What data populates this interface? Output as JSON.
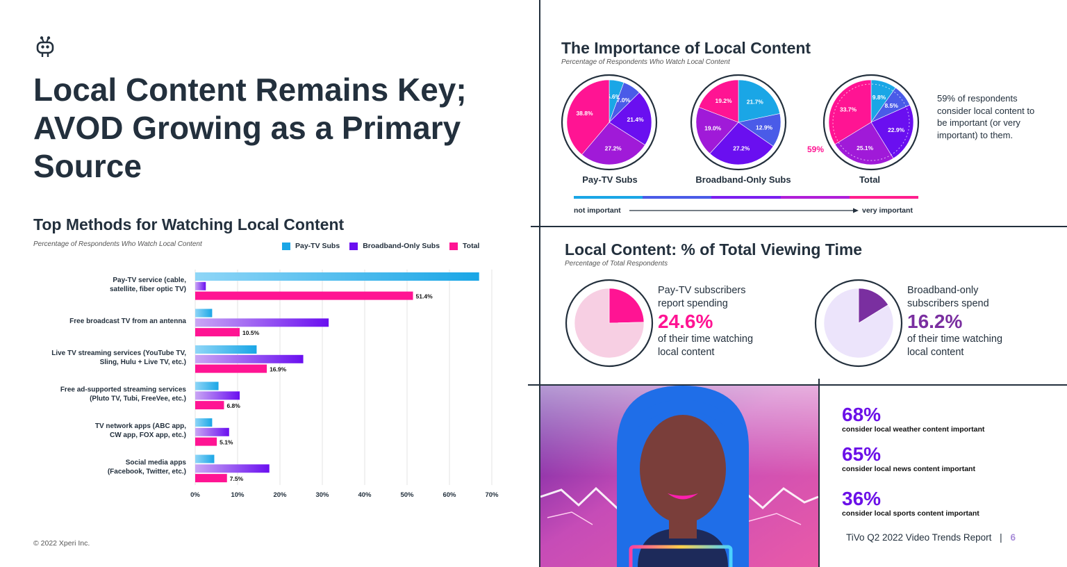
{
  "page": {
    "title": "Local Content Remains Key; AVOD Growing as a Primary Source",
    "copyright": "© 2022 Xperi Inc.",
    "report": "TiVo Q2 2022 Video Trends Report",
    "separator": "|",
    "page_number": "6"
  },
  "bar_section": {
    "title": "Top Methods for Watching Local Content",
    "subtitle": "Percentage of Respondents Who Watch Local Content"
  },
  "pie_section": {
    "title": "The Importance of Local Content",
    "subtitle": "Percentage of Respondents Who Watch Local Content",
    "note": "59% of respondents consider local content to be important (or very important) to them.",
    "total_callout": "59%",
    "scale_low": "not important",
    "scale_high": "very important",
    "scale_colors": [
      "#1aa6e6",
      "#4a5be8",
      "#7a1ff0",
      "#b01ed8",
      "#ff1f8e"
    ]
  },
  "viewing_section": {
    "title": "Local Content: % of Total Viewing Time",
    "subtitle": "Percentage of Total Respondents",
    "paytv": {
      "line1": "Pay-TV subscribers",
      "line2": "report spending",
      "value": "24.6%",
      "line3": "of their time watching",
      "line4": "local content",
      "color": "#ff1493"
    },
    "broadband": {
      "line1": "Broadband-only",
      "line2": "subscribers spend",
      "value": "16.2%",
      "line3": "of their time watching",
      "line4": "local content",
      "color": "#7a2fa0"
    }
  },
  "stats": [
    {
      "value": "68%",
      "label": "consider local weather content important"
    },
    {
      "value": "65%",
      "label": "consider local news content important"
    },
    {
      "value": "36%",
      "label": "consider local sports content important"
    }
  ],
  "chart_data": [
    {
      "type": "bar",
      "orientation": "horizontal",
      "title": "Top Methods for Watching Local Content",
      "subtitle": "Percentage of Respondents Who Watch Local Content",
      "categories": [
        "Pay-TV service (cable,\nsatellite, fiber optic TV)",
        "Free broadcast TV from an antenna",
        "Live TV streaming services (YouTube TV,\nSling, Hulu + Live TV, etc.)",
        "Free ad-supported streaming services\n(Pluto TV, Tubi, FreeVee, etc.)",
        "TV network apps (ABC app,\nCW app, FOX app, etc.)",
        "Social media apps\n(Facebook, Twitter, etc.)"
      ],
      "series": [
        {
          "name": "Pay-TV Subs",
          "color": "#1aa6e6",
          "values": [
            67,
            4,
            14.5,
            5.5,
            4,
            4.5
          ]
        },
        {
          "name": "Broadband-Only Subs",
          "color": "#6a0ff0",
          "values": [
            2.5,
            31.5,
            25.5,
            10.5,
            8,
            17.5
          ]
        },
        {
          "name": "Total",
          "color": "#ff1493",
          "values": [
            51.4,
            10.5,
            16.9,
            6.8,
            5.1,
            7.5
          ],
          "labels": [
            "51.4%",
            "10.5%",
            "16.9%",
            "6.8%",
            "5.1%",
            "7.5%"
          ]
        }
      ],
      "xlim": [
        0,
        70
      ],
      "xticks": [
        "0%",
        "10%",
        "20%",
        "30%",
        "40%",
        "50%",
        "60%",
        "70%"
      ],
      "legend": "top-right",
      "grid": true
    },
    {
      "type": "pie",
      "title": "Pay-TV Subs",
      "slices": [
        {
          "value": 5.6,
          "label": "5.6%",
          "color": "#1aa6e6"
        },
        {
          "value": 7.0,
          "label": "7.0%",
          "color": "#4a5be8"
        },
        {
          "value": 21.4,
          "label": "21.4%",
          "color": "#6a0ff0"
        },
        {
          "value": 27.2,
          "label": "27.2%",
          "color": "#a01ad8"
        },
        {
          "value": 38.8,
          "label": "38.8%",
          "color": "#ff1493"
        }
      ]
    },
    {
      "type": "pie",
      "title": "Broadband-Only Subs",
      "slices": [
        {
          "value": 21.7,
          "label": "21.7%",
          "color": "#1aa6e6"
        },
        {
          "value": 12.9,
          "label": "12.9%",
          "color": "#4a5be8"
        },
        {
          "value": 27.2,
          "label": "27.2%",
          "color": "#6a0ff0"
        },
        {
          "value": 19.0,
          "label": "19.0%",
          "color": "#a01ad8"
        },
        {
          "value": 19.2,
          "label": "19.2%",
          "color": "#ff1493"
        }
      ]
    },
    {
      "type": "pie",
      "title": "Total",
      "slices": [
        {
          "value": 9.8,
          "label": "9.8%",
          "color": "#1aa6e6"
        },
        {
          "value": 8.5,
          "label": "8.5%",
          "color": "#4a5be8"
        },
        {
          "value": 22.9,
          "label": "22.9%",
          "color": "#6a0ff0"
        },
        {
          "value": 25.1,
          "label": "25.1%",
          "color": "#a01ad8"
        },
        {
          "value": 33.7,
          "label": "33.7%",
          "color": "#ff1493"
        }
      ]
    },
    {
      "type": "pie",
      "title": "Pay-TV subscribers",
      "value": 24.6,
      "color": "#ff1493",
      "background": "#f7cfe3"
    },
    {
      "type": "pie",
      "title": "Broadband-only subscribers",
      "value": 16.2,
      "color": "#7a2fa0",
      "background": "#ece4fb"
    }
  ]
}
